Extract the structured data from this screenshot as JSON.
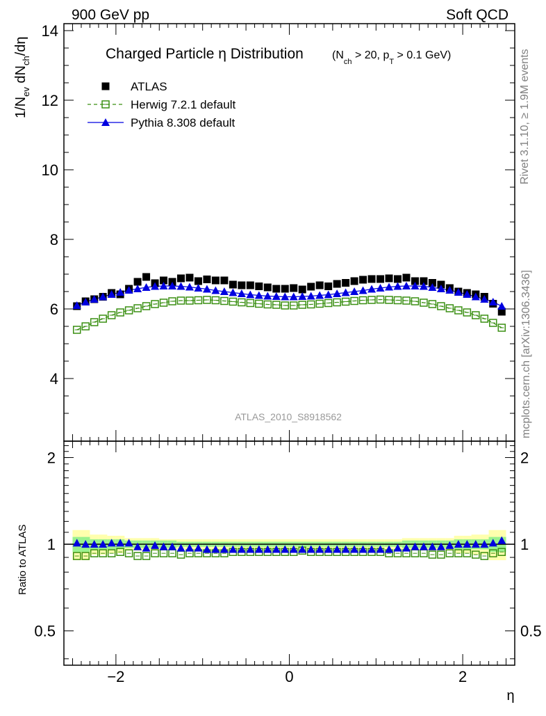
{
  "header": {
    "left": "900 GeV pp",
    "right": "Soft QCD"
  },
  "side_labels": {
    "top": "Rivet 3.1.10, ≥ 1.9M events",
    "bottom": "mcplots.cern.ch [arXiv:1306.3436]"
  },
  "title": {
    "main": "Charged Particle η Distribution",
    "sub": "(N_ch > 20, p_T > 0.1 GeV)"
  },
  "analysis_id": "ATLAS_2010_S8918562",
  "chart_data": [
    {
      "type": "scatter",
      "panel": "main",
      "ylabel": "1/N_ev dN_ch/dη",
      "xlim": [
        -2.6,
        2.6
      ],
      "ylim": [
        2.2,
        14.2
      ],
      "yticks": [
        4,
        6,
        8,
        10,
        12,
        14
      ],
      "legend_position": "top-left",
      "x": [
        -2.45,
        -2.35,
        -2.25,
        -2.15,
        -2.05,
        -1.95,
        -1.85,
        -1.75,
        -1.65,
        -1.55,
        -1.45,
        -1.35,
        -1.25,
        -1.15,
        -1.05,
        -0.95,
        -0.85,
        -0.75,
        -0.65,
        -0.55,
        -0.45,
        -0.35,
        -0.25,
        -0.15,
        -0.05,
        0.05,
        0.15,
        0.25,
        0.35,
        0.45,
        0.55,
        0.65,
        0.75,
        0.85,
        0.95,
        1.05,
        1.15,
        1.25,
        1.35,
        1.45,
        1.55,
        1.65,
        1.75,
        1.85,
        1.95,
        2.05,
        2.15,
        2.25,
        2.35,
        2.45
      ],
      "series": [
        {
          "name": "ATLAS",
          "color": "#000000",
          "marker": "square-filled",
          "values": [
            6.08,
            6.22,
            6.28,
            6.35,
            6.46,
            6.42,
            6.58,
            6.78,
            6.92,
            6.74,
            6.82,
            6.78,
            6.88,
            6.9,
            6.8,
            6.85,
            6.82,
            6.82,
            6.7,
            6.68,
            6.68,
            6.65,
            6.62,
            6.58,
            6.58,
            6.6,
            6.56,
            6.64,
            6.68,
            6.65,
            6.72,
            6.75,
            6.8,
            6.84,
            6.86,
            6.86,
            6.88,
            6.86,
            6.9,
            6.8,
            6.8,
            6.75,
            6.7,
            6.6,
            6.5,
            6.46,
            6.42,
            6.35,
            6.15,
            5.92
          ]
        },
        {
          "name": "Herwig 7.2.1 default",
          "color": "#3a8f12",
          "marker": "square-open",
          "line": "dashed",
          "values": [
            5.4,
            5.5,
            5.62,
            5.72,
            5.82,
            5.9,
            5.96,
            6.02,
            6.08,
            6.14,
            6.18,
            6.22,
            6.24,
            6.24,
            6.25,
            6.26,
            6.25,
            6.23,
            6.21,
            6.19,
            6.17,
            6.15,
            6.13,
            6.12,
            6.1,
            6.1,
            6.12,
            6.13,
            6.15,
            6.17,
            6.19,
            6.21,
            6.23,
            6.25,
            6.26,
            6.27,
            6.26,
            6.25,
            6.24,
            6.22,
            6.18,
            6.14,
            6.08,
            6.02,
            5.96,
            5.9,
            5.82,
            5.72,
            5.6,
            5.46
          ]
        },
        {
          "name": "Pythia 8.308 default",
          "color": "#0000e0",
          "marker": "triangle-filled",
          "line": "solid",
          "values": [
            6.1,
            6.2,
            6.28,
            6.35,
            6.42,
            6.48,
            6.54,
            6.58,
            6.62,
            6.65,
            6.66,
            6.66,
            6.65,
            6.63,
            6.6,
            6.57,
            6.53,
            6.5,
            6.47,
            6.44,
            6.41,
            6.39,
            6.37,
            6.36,
            6.35,
            6.35,
            6.36,
            6.37,
            6.39,
            6.41,
            6.44,
            6.47,
            6.5,
            6.53,
            6.57,
            6.6,
            6.63,
            6.65,
            6.66,
            6.66,
            6.65,
            6.62,
            6.58,
            6.54,
            6.48,
            6.42,
            6.35,
            6.28,
            6.2,
            6.08
          ]
        }
      ]
    },
    {
      "type": "scatter",
      "panel": "ratio",
      "xlabel": "η",
      "ylabel": "Ratio to ATLAS",
      "xlim": [
        -2.6,
        2.6
      ],
      "ylim": [
        0.38,
        2.28
      ],
      "log_y": true,
      "xticks": [
        -2,
        0,
        2
      ],
      "yticks": [
        0.5,
        1,
        2
      ],
      "band_inner": [
        0.06,
        0.06,
        0.04,
        0.04,
        0.04,
        0.04,
        0.03,
        0.03,
        0.03,
        0.03,
        0.03,
        0.03,
        0.02,
        0.02,
        0.02,
        0.02,
        0.02,
        0.02,
        0.02,
        0.02,
        0.02,
        0.02,
        0.02,
        0.02,
        0.02,
        0.02,
        0.02,
        0.02,
        0.02,
        0.02,
        0.02,
        0.02,
        0.02,
        0.02,
        0.02,
        0.02,
        0.02,
        0.02,
        0.03,
        0.03,
        0.03,
        0.03,
        0.03,
        0.03,
        0.04,
        0.04,
        0.04,
        0.04,
        0.06,
        0.06
      ],
      "band_outer": [
        0.12,
        0.12,
        0.08,
        0.08,
        0.07,
        0.07,
        0.05,
        0.05,
        0.05,
        0.05,
        0.04,
        0.04,
        0.04,
        0.04,
        0.04,
        0.04,
        0.04,
        0.04,
        0.04,
        0.04,
        0.04,
        0.04,
        0.04,
        0.04,
        0.04,
        0.04,
        0.04,
        0.04,
        0.04,
        0.04,
        0.04,
        0.04,
        0.04,
        0.04,
        0.04,
        0.04,
        0.04,
        0.04,
        0.05,
        0.05,
        0.05,
        0.05,
        0.05,
        0.05,
        0.07,
        0.07,
        0.08,
        0.08,
        0.12,
        0.12
      ],
      "series": [
        {
          "name": "Herwig 7.2.1 default",
          "color": "#3a8f12",
          "marker": "square-open",
          "values": [
            0.91,
            0.91,
            0.93,
            0.93,
            0.93,
            0.94,
            0.93,
            0.91,
            0.91,
            0.93,
            0.93,
            0.93,
            0.92,
            0.93,
            0.93,
            0.93,
            0.93,
            0.93,
            0.94,
            0.94,
            0.94,
            0.94,
            0.94,
            0.94,
            0.94,
            0.94,
            0.95,
            0.94,
            0.94,
            0.94,
            0.94,
            0.94,
            0.94,
            0.94,
            0.94,
            0.94,
            0.93,
            0.93,
            0.93,
            0.93,
            0.93,
            0.92,
            0.92,
            0.93,
            0.93,
            0.93,
            0.92,
            0.91,
            0.93,
            0.94
          ]
        },
        {
          "name": "Pythia 8.308 default",
          "color": "#0000e0",
          "marker": "triangle-filled",
          "values": [
            1.01,
            1.0,
            1.0,
            1.0,
            1.01,
            1.01,
            1.01,
            0.98,
            0.97,
            0.99,
            0.98,
            0.98,
            0.97,
            0.97,
            0.97,
            0.96,
            0.96,
            0.96,
            0.96,
            0.96,
            0.96,
            0.96,
            0.96,
            0.96,
            0.96,
            0.96,
            0.96,
            0.96,
            0.96,
            0.96,
            0.96,
            0.96,
            0.96,
            0.96,
            0.96,
            0.96,
            0.96,
            0.97,
            0.97,
            0.98,
            0.98,
            0.98,
            0.98,
            0.99,
            1.0,
            1.0,
            1.0,
            1.0,
            1.01,
            1.03
          ]
        }
      ]
    }
  ]
}
